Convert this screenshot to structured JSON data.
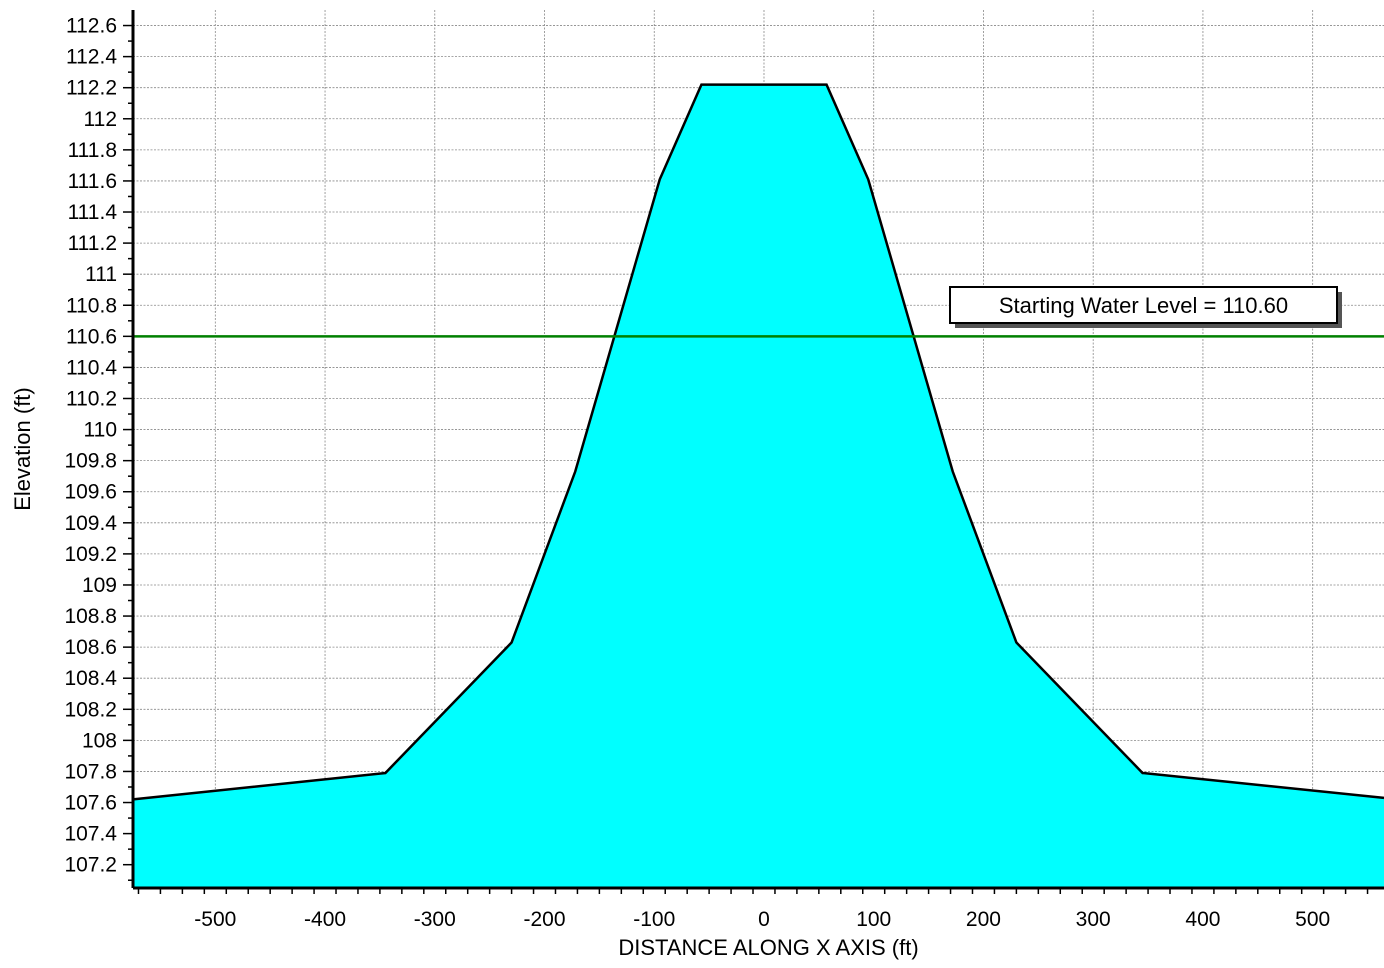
{
  "chart_data": {
    "type": "area",
    "xlabel": "DISTANCE ALONG X AXIS (ft)",
    "ylabel": "Elevation (ft)",
    "xlim": [
      -575,
      565
    ],
    "ylim": [
      107.05,
      112.7
    ],
    "grid": true,
    "x_ticks": [
      -500,
      -400,
      -300,
      -200,
      -100,
      0,
      100,
      200,
      300,
      400,
      500
    ],
    "y_ticks": [
      107.2,
      107.4,
      107.6,
      107.8,
      108,
      108.2,
      108.4,
      108.6,
      108.8,
      109,
      109.2,
      109.4,
      109.6,
      109.8,
      110,
      110.2,
      110.4,
      110.6,
      110.8,
      111,
      111.2,
      111.4,
      111.6,
      111.8,
      112,
      112.2,
      112.4,
      112.6
    ],
    "y_tick_labels": [
      "107.2",
      "107.4",
      "107.6",
      "107.8",
      "108",
      "108.2",
      "108.4",
      "108.6",
      "108.8",
      "109",
      "109.2",
      "109.4",
      "109.6",
      "109.8",
      "110",
      "110.2",
      "110.4",
      "110.6",
      "110.8",
      "111",
      "111.2",
      "111.4",
      "111.6",
      "111.8",
      "112",
      "112.2",
      "112.4",
      "112.6"
    ],
    "x_tick_labels": [
      "-500",
      "-400",
      "-300",
      "-200",
      "-100",
      "0",
      "100",
      "200",
      "300",
      "400",
      "500"
    ],
    "fill_color": "#00ffff",
    "outline_color": "#000000",
    "series": [
      {
        "x": [
          -575,
          -345,
          -230,
          -172,
          -95,
          -57,
          57,
          95,
          172,
          230,
          345,
          565
        ],
        "y": [
          107.62,
          107.79,
          108.63,
          109.73,
          111.61,
          112.22,
          112.22,
          111.61,
          109.73,
          108.63,
          107.79,
          107.63
        ]
      }
    ],
    "water_level": {
      "value": 110.6,
      "color": "#008000",
      "label": "Starting Water Level = 110.60"
    }
  }
}
